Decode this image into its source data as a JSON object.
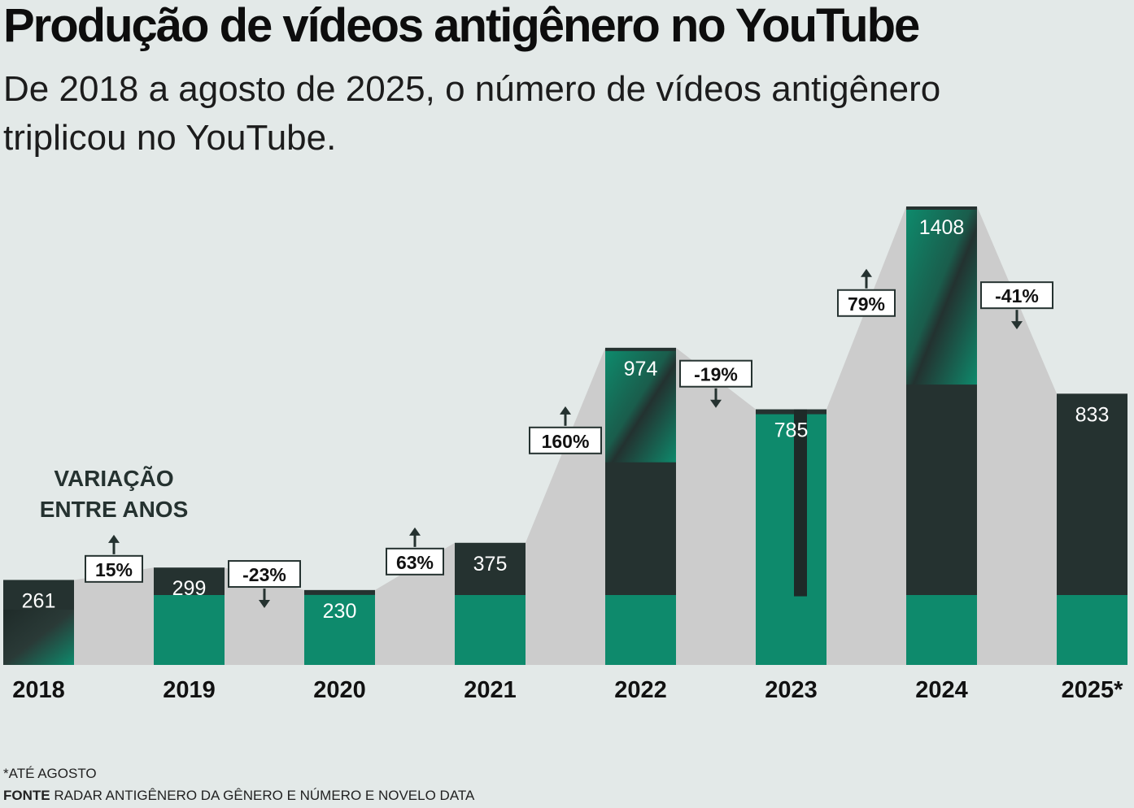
{
  "title": "Produção de vídeos antigênero no YouTube",
  "subtitle": "De 2018 a agosto de 2025, o número de vídeos antigênero triplicou no YouTube.",
  "variation_label": [
    "VARIAÇÃO",
    "ENTRE ANOS"
  ],
  "footnote": "*ATÉ AGOSTO",
  "source_label": "FONTE",
  "source_text": "RADAR ANTIGÊNERO DA GÊNERO E NÚMERO E NOVELO DATA",
  "colors": {
    "background": "#e3e9e8",
    "area": "#cccccc",
    "bar_dark": "#253230",
    "bar_green": "#0e8a6c",
    "text": "#111111"
  },
  "chart_data": {
    "type": "bar",
    "categories": [
      "2018",
      "2019",
      "2020",
      "2021",
      "2022",
      "2023",
      "2024",
      "2025*"
    ],
    "values": [
      261,
      299,
      230,
      375,
      974,
      785,
      1408,
      833
    ],
    "value_labels": [
      "261",
      "299",
      "230",
      "375",
      "974",
      "785",
      "1408",
      "833"
    ],
    "changes": [
      {
        "label": "15%",
        "direction": "up"
      },
      {
        "label": "-23%",
        "direction": "down"
      },
      {
        "label": "63%",
        "direction": "up"
      },
      {
        "label": "160%",
        "direction": "up"
      },
      {
        "label": "-19%",
        "direction": "down"
      },
      {
        "label": "79%",
        "direction": "up"
      },
      {
        "label": "-41%",
        "direction": "down"
      }
    ],
    "ylim": [
      0,
      1408
    ],
    "title": "Produção de vídeos antigênero no YouTube",
    "xlabel": "",
    "ylabel": ""
  }
}
